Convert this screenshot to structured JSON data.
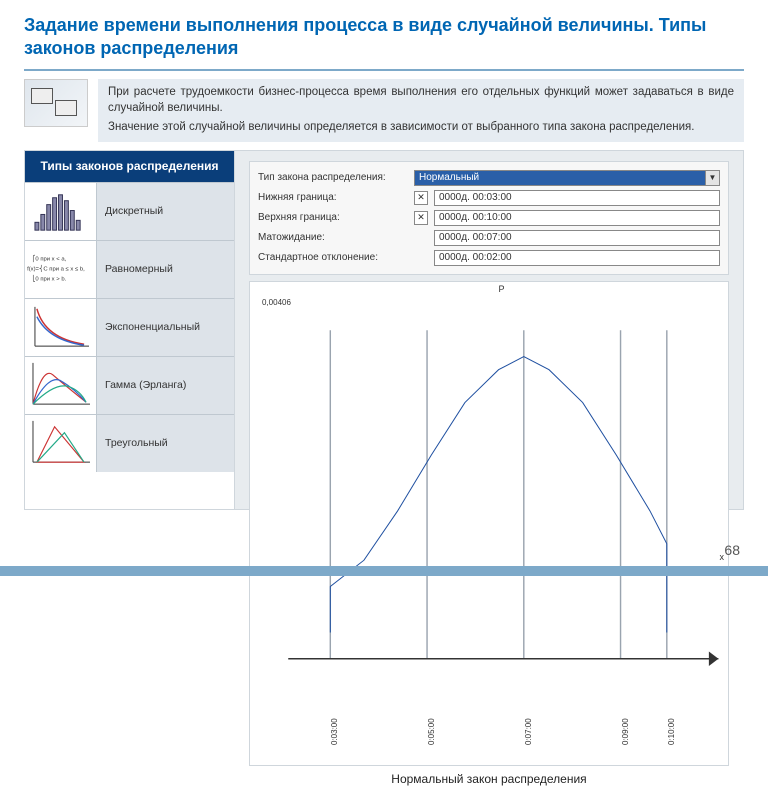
{
  "title": "Задание времени выполнения процесса в виде случайной величины. Типы законов распределения",
  "intro": {
    "p1": "При расчете трудоемкости бизнес-процесса время выполнения его отдельных функций может задаваться в виде случайной величины.",
    "p2": "Значение этой случайной величины определяется в зависимости от выбранного типа закона распределения."
  },
  "sidebar": {
    "header": "Типы законов распределения",
    "items": [
      {
        "label": "Дискретный"
      },
      {
        "label": "Равномерный"
      },
      {
        "label": "Экспоненциальный"
      },
      {
        "label": "Гамма (Эрланга)"
      },
      {
        "label": "Треугольный"
      }
    ]
  },
  "form": {
    "rows": [
      {
        "label": "Тип закона распределения:",
        "kind": "select",
        "value": "Нормальный"
      },
      {
        "label": "Нижняя граница:",
        "kind": "xinput",
        "value": "0000д. 00:03:00"
      },
      {
        "label": "Верхняя граница:",
        "kind": "xinput",
        "value": "0000д. 00:10:00"
      },
      {
        "label": "Матожидание:",
        "kind": "input",
        "value": "0000д. 00:07:00"
      },
      {
        "label": "Стандартное отклонение:",
        "kind": "input",
        "value": "0000д. 00:02:00"
      }
    ]
  },
  "chart": {
    "type": "line",
    "caption": "Нормальный закон распределения",
    "y_peak_label": "0,00406",
    "p_label": "P",
    "x_label": "x",
    "x_ticks": [
      "0:03:00",
      "0:05:00",
      "0:07:00",
      "0:09:00",
      "0:10:00"
    ],
    "x_tick_positions": [
      0.1,
      0.33,
      0.56,
      0.79,
      0.9
    ],
    "curve_points": [
      [
        0.1,
        0.92
      ],
      [
        0.1,
        0.78
      ],
      [
        0.18,
        0.7
      ],
      [
        0.26,
        0.55
      ],
      [
        0.34,
        0.38
      ],
      [
        0.42,
        0.22
      ],
      [
        0.5,
        0.12
      ],
      [
        0.56,
        0.08
      ],
      [
        0.62,
        0.12
      ],
      [
        0.7,
        0.22
      ],
      [
        0.78,
        0.38
      ],
      [
        0.86,
        0.55
      ],
      [
        0.9,
        0.65
      ],
      [
        0.9,
        0.92
      ]
    ],
    "line_color": "#1e4fa0",
    "line_width": 2,
    "grid_color": "#9aa4af",
    "background_color": "#ffffff"
  },
  "page_number": "68",
  "colors": {
    "title": "#0066b3",
    "underline": "#7da9c9",
    "sidebar_header_bg": "#0a3e7a",
    "select_bg": "#2a5fa8"
  }
}
